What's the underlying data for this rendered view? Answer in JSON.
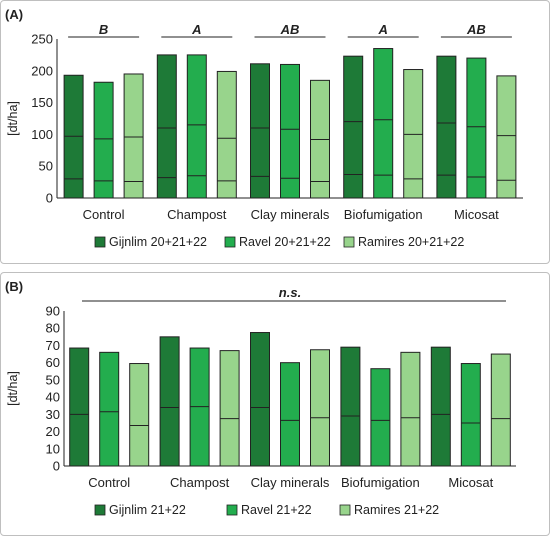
{
  "panels": [
    {
      "label": "(A)",
      "ylabel": "[dt/ha]",
      "ylim": [
        0,
        250
      ],
      "yticks": [
        "0",
        "50",
        "100",
        "150",
        "200",
        "250"
      ],
      "categories": [
        "Control",
        "Champost",
        "Clay minerals",
        "Biofumigation",
        "Micosat"
      ],
      "significance": [
        "B",
        "A",
        "AB",
        "A",
        "AB"
      ],
      "legend": [
        "Gijnlim 20+21+22",
        "Ravel 20+21+22",
        "Ramires 20+21+22"
      ]
    },
    {
      "label": "(B)",
      "ylabel": "[dt/ha]",
      "ylim": [
        0,
        90
      ],
      "yticks": [
        "0",
        "10",
        "20",
        "30",
        "40",
        "50",
        "60",
        "70",
        "80",
        "90"
      ],
      "categories": [
        "Control",
        "Champost",
        "Clay minerals",
        "Biofumigation",
        "Micosat"
      ],
      "significance_all": "n.s.",
      "legend": [
        "Gijnlim 21+22",
        "Ravel 21+22",
        "Ramires 21+22"
      ]
    }
  ],
  "chart_data": [
    {
      "type": "bar",
      "stacked": true,
      "ylabel": "[dt/ha]",
      "ylim": [
        0,
        250
      ],
      "categories": [
        "Control",
        "Champost",
        "Clay minerals",
        "Biofumigation",
        "Micosat"
      ],
      "colors": [
        "#1e7a37",
        "#23ad4e",
        "#98d48c"
      ],
      "series": [
        {
          "name": "Gijnlim 20+21+22",
          "segments": [
            [
              30,
              97,
              193
            ],
            [
              32,
              110,
              225
            ],
            [
              34,
              110,
              211
            ],
            [
              37,
              120,
              223
            ],
            [
              36,
              118,
              223
            ]
          ]
        },
        {
          "name": "Ravel 20+21+22",
          "segments": [
            [
              27,
              93,
              182
            ],
            [
              35,
              115,
              225
            ],
            [
              31,
              108,
              210
            ],
            [
              36,
              123,
              235
            ],
            [
              33,
              112,
              220
            ]
          ]
        },
        {
          "name": "Ramires 20+21+22",
          "segments": [
            [
              26,
              96,
              195
            ],
            [
              27,
              94,
              199
            ],
            [
              26,
              92,
              185
            ],
            [
              30,
              100,
              202
            ],
            [
              28,
              98,
              192
            ]
          ]
        }
      ]
    },
    {
      "type": "bar",
      "stacked": true,
      "ylabel": "[dt/ha]",
      "ylim": [
        0,
        90
      ],
      "categories": [
        "Control",
        "Champost",
        "Clay minerals",
        "Biofumigation",
        "Micosat"
      ],
      "colors": [
        "#1e7a37",
        "#23ad4e",
        "#98d48c"
      ],
      "series": [
        {
          "name": "Gijnlim 21+22",
          "segments": [
            [
              30,
              68.5
            ],
            [
              34,
              75
            ],
            [
              34,
              77.5
            ],
            [
              29,
              69
            ],
            [
              30,
              69
            ]
          ]
        },
        {
          "name": "Ravel 21+22",
          "segments": [
            [
              31.5,
              66
            ],
            [
              34.5,
              68.5
            ],
            [
              26.5,
              60
            ],
            [
              26.5,
              56.5
            ],
            [
              25,
              59.5
            ]
          ]
        },
        {
          "name": "Ramires 21+22",
          "segments": [
            [
              23.5,
              59.5
            ],
            [
              27.5,
              67
            ],
            [
              28,
              67.5
            ],
            [
              28,
              66
            ],
            [
              27.5,
              65
            ]
          ]
        }
      ]
    }
  ]
}
